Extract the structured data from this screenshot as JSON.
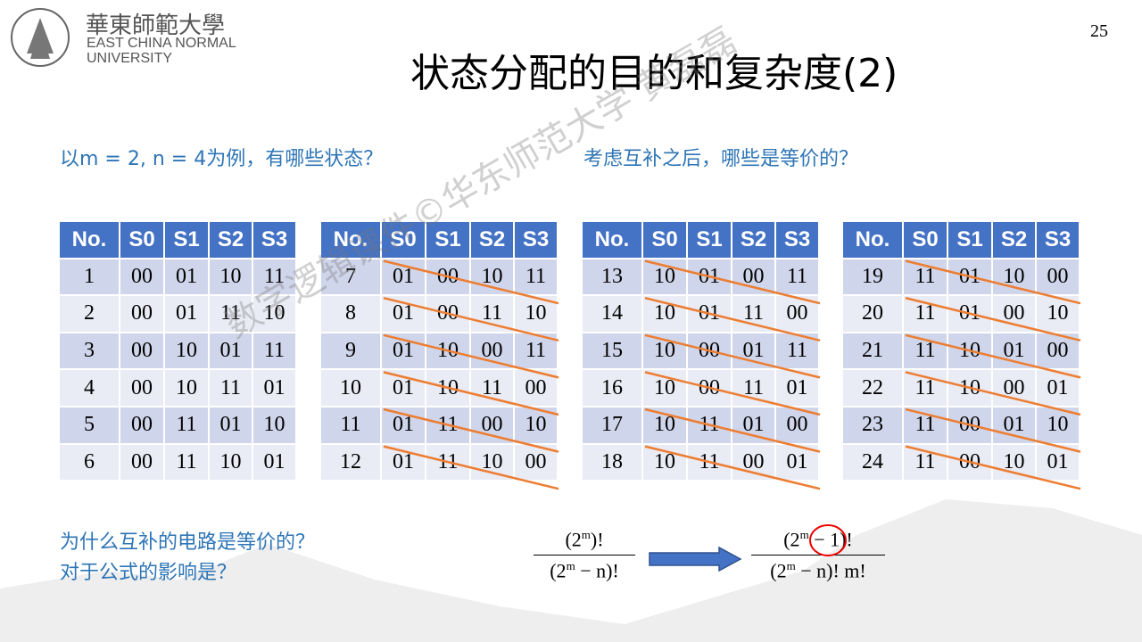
{
  "logo": {
    "chinese": "華東師範大學",
    "english_line1": "EAST CHINA NORMAL",
    "english_line2": "UNIVERSITY"
  },
  "page_number": 25,
  "title": "状态分配的目的和复杂度(2)",
  "question_left": "以m = 2, n = 4为例，有哪些状态？",
  "question_right": "考虑互补之后，哪些是等价的？",
  "tables": [
    {
      "header": [
        "No.",
        "S0",
        "S1",
        "S2",
        "S3"
      ],
      "rows": [
        [
          "1",
          "00",
          "01",
          "10",
          "11"
        ],
        [
          "2",
          "00",
          "01",
          "11",
          "10"
        ],
        [
          "3",
          "00",
          "10",
          "01",
          "11"
        ],
        [
          "4",
          "00",
          "10",
          "11",
          "01"
        ],
        [
          "5",
          "00",
          "11",
          "01",
          "10"
        ],
        [
          "6",
          "00",
          "11",
          "10",
          "01"
        ]
      ]
    },
    {
      "header": [
        "No.",
        "S0",
        "S1",
        "S2",
        "S3"
      ],
      "rows": [
        [
          "7",
          "01",
          "00",
          "10",
          "11"
        ],
        [
          "8",
          "01",
          "00",
          "11",
          "10"
        ],
        [
          "9",
          "01",
          "10",
          "00",
          "11"
        ],
        [
          "10",
          "01",
          "10",
          "11",
          "00"
        ],
        [
          "11",
          "01",
          "11",
          "00",
          "10"
        ],
        [
          "12",
          "01",
          "11",
          "10",
          "00"
        ]
      ]
    },
    {
      "header": [
        "No.",
        "S0",
        "S1",
        "S2",
        "S3"
      ],
      "rows": [
        [
          "13",
          "10",
          "01",
          "00",
          "11"
        ],
        [
          "14",
          "10",
          "01",
          "11",
          "00"
        ],
        [
          "15",
          "10",
          "00",
          "01",
          "11"
        ],
        [
          "16",
          "10",
          "00",
          "11",
          "01"
        ],
        [
          "17",
          "10",
          "11",
          "01",
          "00"
        ],
        [
          "18",
          "10",
          "11",
          "00",
          "01"
        ]
      ]
    },
    {
      "header": [
        "No.",
        "S0",
        "S1",
        "S2",
        "S3"
      ],
      "rows": [
        [
          "19",
          "11",
          "01",
          "10",
          "00"
        ],
        [
          "20",
          "11",
          "01",
          "00",
          "10"
        ],
        [
          "21",
          "11",
          "10",
          "01",
          "00"
        ],
        [
          "22",
          "11",
          "10",
          "00",
          "01"
        ],
        [
          "23",
          "11",
          "00",
          "01",
          "10"
        ],
        [
          "24",
          "11",
          "00",
          "10",
          "01"
        ]
      ]
    }
  ],
  "bottom_questions": [
    "为什么互补的电路是等价的？",
    "对于公式的影响是？"
  ],
  "formula_left": {
    "numerator": {
      "pre": "(2",
      "sup": "m",
      "post": ")!"
    },
    "denominator": {
      "pre": "(2",
      "sup": "m",
      "post": " − n)!"
    }
  },
  "formula_right": {
    "numerator": {
      "pre": "(2",
      "sup": "m",
      "post": " − 1)!"
    },
    "denominator": {
      "pre": "(2",
      "sup": "m",
      "post": " − n)! m!"
    }
  },
  "watermark": "数字逻辑课件©华东师范大学 黄磊磊"
}
